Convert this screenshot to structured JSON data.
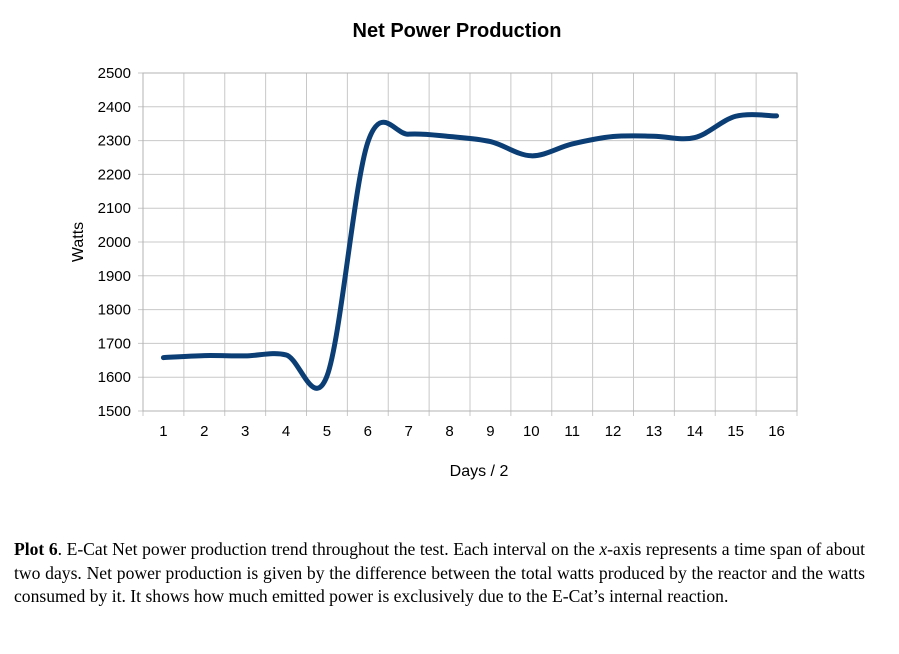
{
  "chart_data": {
    "type": "line",
    "title": "Net Power Production",
    "xlabel": "Days / 2",
    "ylabel": "Watts",
    "x": [
      1,
      2,
      3,
      4,
      5,
      6,
      7,
      8,
      9,
      10,
      11,
      12,
      13,
      14,
      15,
      16
    ],
    "series": [
      {
        "values": [
          1658,
          1664,
          1663,
          1666,
          1603,
          2295,
          2319,
          2312,
          2297,
          2255,
          2290,
          2312,
          2313,
          2309,
          2372,
          2373
        ]
      }
    ],
    "xlim": [
      0.5,
      16.5
    ],
    "ylim": [
      1500,
      2500
    ],
    "yticks": [
      1500,
      1600,
      1700,
      1800,
      1900,
      2000,
      2100,
      2200,
      2300,
      2400,
      2500
    ],
    "xticks": [
      "1",
      "2",
      "3",
      "4",
      "5",
      "6",
      "7",
      "8",
      "9",
      "10",
      "11",
      "12",
      "13",
      "14",
      "15",
      "16"
    ],
    "grid": true,
    "legend": "none",
    "line_color": "#0b3e75"
  },
  "caption": {
    "label": "Plot 6",
    "text_1": ". E-Cat Net power production trend throughout the test. Each interval on the ",
    "text_italic": "x",
    "text_2": "-axis represents a time span of about two days. Net power production is given by the difference between the total watts produced by the reactor and the watts consumed by it. It shows how much emitted power is exclusively due to the E-Cat’s internal reaction."
  }
}
